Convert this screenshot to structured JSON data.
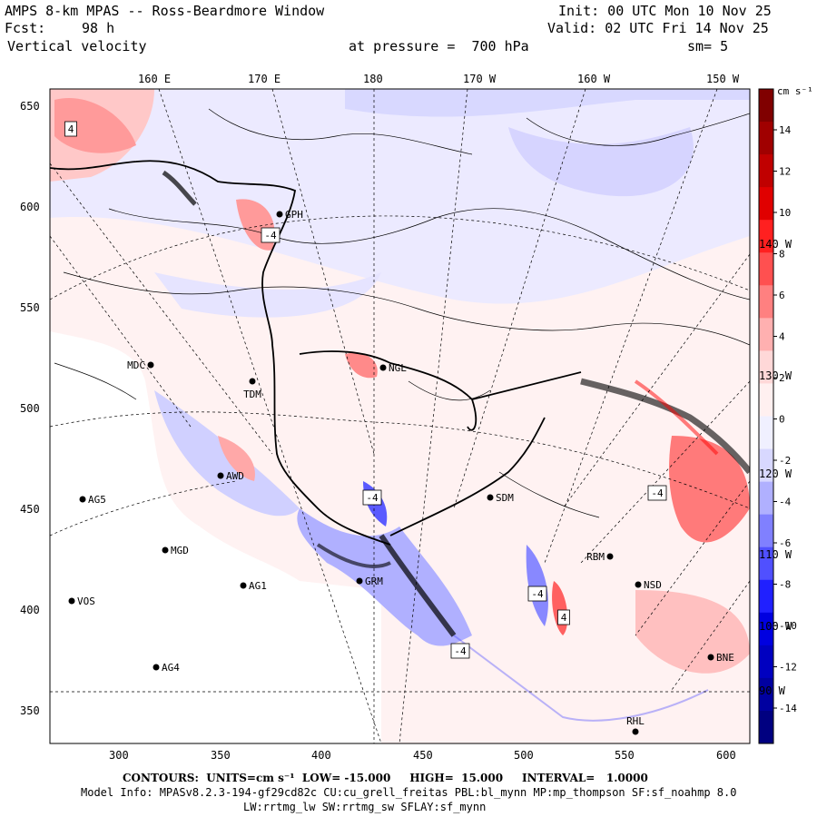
{
  "header": {
    "title": "AMPS 8-km MPAS -- Ross-Beardmore Window",
    "forecast_label": "Fcst:",
    "forecast_hours": "98 h",
    "field": "Vertical velocity",
    "init": "Init: 00 UTC Mon 10 Nov 25",
    "valid": "Valid: 02 UTC Fri 14 Nov 25",
    "pressure": "at pressure =  700 hPa",
    "smoothing": "sm= 5"
  },
  "top_lon_labels": [
    "160 E",
    "170 E",
    "180",
    "170 W",
    "160 W",
    "150 W"
  ],
  "right_lon_labels": [
    "140 W",
    "130 W",
    "120 W",
    "110 W",
    "100 W",
    "90 W"
  ],
  "y_axis_ticks": [
    "650",
    "600",
    "550",
    "500",
    "450",
    "400",
    "350"
  ],
  "x_axis_ticks": [
    "300",
    "350",
    "400",
    "450",
    "500",
    "550",
    "600"
  ],
  "colorbar": {
    "units": "cm s⁻¹",
    "labels": [
      "14",
      "12",
      "10",
      "8",
      "6",
      "4",
      "2",
      "0",
      "-2",
      "-4",
      "-6",
      "-8",
      "-10",
      "-12",
      "-14"
    ],
    "colors": [
      "#800000",
      "#a00000",
      "#c00000",
      "#e00000",
      "#ff2020",
      "#ff5050",
      "#ff8080",
      "#ffb0b0",
      "#ffd8d8",
      "#fff0f0",
      "#f0f0ff",
      "#d8d8ff",
      "#b0b0ff",
      "#8080ff",
      "#5050ff",
      "#2020ff",
      "#0000e0",
      "#0000c0",
      "#0000a0",
      "#000080"
    ]
  },
  "stations": [
    {
      "name": "GPH"
    },
    {
      "name": "MDC"
    },
    {
      "name": "TDM"
    },
    {
      "name": "NGL"
    },
    {
      "name": "SDM"
    },
    {
      "name": "AG5"
    },
    {
      "name": "MGD"
    },
    {
      "name": "AG1"
    },
    {
      "name": "VOS"
    },
    {
      "name": "AG4"
    },
    {
      "name": "GRM"
    },
    {
      "name": "NSD"
    },
    {
      "name": "RBM"
    },
    {
      "name": "BNE"
    },
    {
      "name": "RHL"
    },
    {
      "name": "AWD"
    }
  ],
  "contour_boxes": [
    "4",
    "-4",
    "-4",
    "-4",
    "4",
    "-4",
    "-4"
  ],
  "footer": {
    "contours": "CONTOURS:  UNITS=cm s⁻¹  LOW= -15.000     HIGH=  15.000     INTERVAL=   1.0000",
    "model_info": "Model Info: MPASv8.2.3-194-gf29cd82c CU:cu_grell_freitas PBL:bl_mynn MP:mp_thompson SF:sf_noahmp 8.0",
    "model_info2": "LW:rrtmg_lw SW:rrtmg_sw SFLAY:sf_mynn"
  }
}
